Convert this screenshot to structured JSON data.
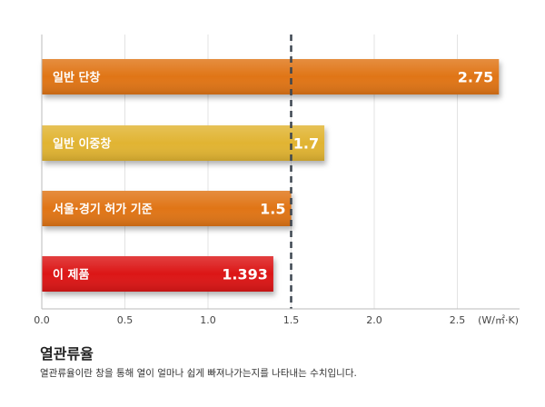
{
  "chart_data": {
    "type": "bar",
    "orientation": "horizontal",
    "categories": [
      "일반 단창",
      "일반 이중창",
      "서울·경기 허가 기준",
      "이 제품"
    ],
    "values": [
      2.75,
      1.7,
      1.5,
      1.393
    ],
    "value_labels": [
      "2.75",
      "1.7",
      "1.5",
      "1.393"
    ],
    "colors": [
      "#e07419",
      "#e1b431",
      "#e07419",
      "#dc1418"
    ],
    "xlim": [
      0,
      2.75
    ],
    "xticks": [
      "0.0",
      "0.5",
      "1.0",
      "1.5",
      "2.0",
      "2.5"
    ],
    "xunit": "(W/㎡·K)",
    "reference_line": 1.5,
    "grid": true
  },
  "caption": {
    "title": "열관류율",
    "description": "열관류율이란 창을 통해 열이 얼마나 쉽게 빠져나가는지를 나타내는 수치입니다."
  }
}
